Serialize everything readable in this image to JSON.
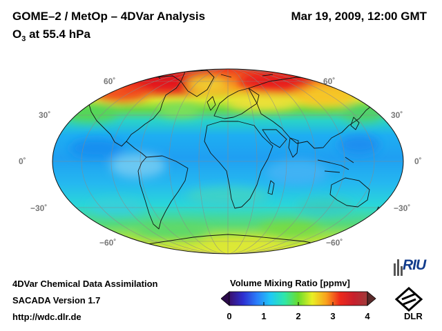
{
  "header": {
    "title": "GOME–2 / MetOp – 4DVar Analysis",
    "subtitle_base": "O",
    "subtitle_sub": "3",
    "subtitle_rest": " at 55.4 hPa",
    "timestamp": "Mar 19, 2009, 12:00 GMT"
  },
  "map": {
    "projection": "Mollweide / Hammer-Aitoff world",
    "latitude_labels": {
      "n60_left": "60˚",
      "n60_right": "60˚",
      "n30_left": "30˚",
      "n30_right": "30˚",
      "eq_left": "0˚",
      "eq_right": "0˚",
      "s30_left": "−30˚",
      "s30_right": "−30˚",
      "s60_left": "−60˚",
      "s60_right": "−60˚"
    }
  },
  "colorbar": {
    "title": "Volume Mixing Ratio [ppmv]",
    "ticks": [
      "0",
      "1",
      "2",
      "3",
      "4"
    ],
    "range": [
      0,
      4
    ],
    "colors": [
      "#3a0f6e",
      "#2d2fd0",
      "#2a7dfa",
      "#1fc9f5",
      "#2fe7a9",
      "#6bdc2c",
      "#e8ef25",
      "#f9a31d",
      "#ee2a1b",
      "#c81f2c",
      "#a03b3b"
    ]
  },
  "footer": {
    "line1": "4DVar Chemical Data Assimilation",
    "line2": "SACADA Version 1.7",
    "line3": "http://wdc.dlr.de"
  },
  "logos": {
    "riu_text": "RIU",
    "dlr_text": "DLR"
  }
}
